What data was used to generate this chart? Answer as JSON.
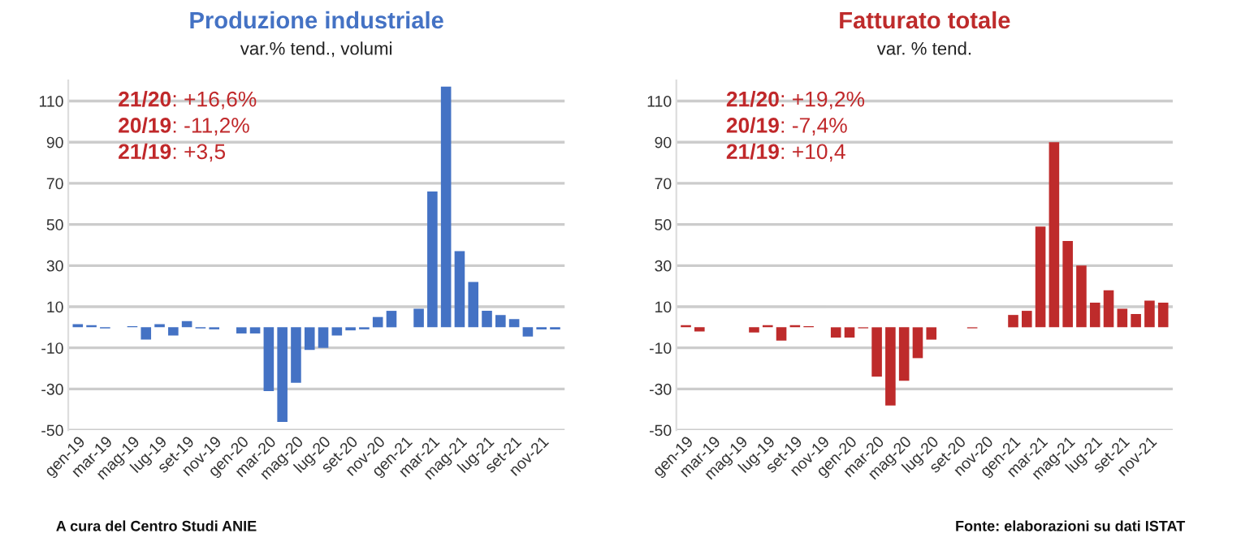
{
  "chart_data": [
    {
      "type": "bar",
      "title": "Produzione industriale",
      "subtitle": "var.% tend., volumi",
      "categories": [
        "gen-19",
        null,
        "mar-19",
        null,
        "mag-19",
        null,
        "lug-19",
        null,
        "set-19",
        null,
        "nov-19",
        null,
        "gen-20",
        null,
        "mar-20",
        null,
        "mag-20",
        null,
        "lug-20",
        null,
        "set-20",
        null,
        "nov-20",
        null,
        "gen-21",
        null,
        "mar-21",
        null,
        "mag-21",
        null,
        "lug-21",
        null,
        "set-21",
        null,
        "nov-21",
        null
      ],
      "series": [
        {
          "color": "#4472c4",
          "values": [
            1.5,
            1,
            -0.5,
            null,
            0.5,
            -6,
            1.5,
            -4,
            3,
            -0.5,
            -1,
            null,
            -3,
            -3,
            -31,
            -46,
            -27,
            -11,
            -10,
            -4,
            -1.5,
            -1,
            5,
            8,
            null,
            9,
            66,
            117,
            37,
            22,
            8,
            6,
            4,
            -4.5,
            -1,
            -1
          ]
        }
      ],
      "ylim": [
        -50,
        120
      ],
      "yticks": [
        -50,
        -30,
        -10,
        10,
        30,
        50,
        70,
        90,
        110
      ],
      "grid": "y",
      "annotations": [
        "21/20: +16,6%",
        "20/19: -11,2%",
        "21/19: +3,5",
        "A cura del Centro Studi ANIE"
      ]
    },
    {
      "type": "bar",
      "title": "Fatturato totale",
      "subtitle": "var. % tend.",
      "categories": [
        "gen-19",
        null,
        "mar-19",
        null,
        "mag-19",
        null,
        "lug-19",
        null,
        "set-19",
        null,
        "nov-19",
        null,
        "gen-20",
        null,
        "mar-20",
        null,
        "mag-20",
        null,
        "lug-20",
        null,
        "set-20",
        null,
        "nov-20",
        null,
        "gen-21",
        null,
        "mar-21",
        null,
        "mag-21",
        null,
        "lug-21",
        null,
        "set-21",
        null,
        "nov-21",
        null
      ],
      "series": [
        {
          "color": "#be2b2b",
          "values": [
            1,
            -2,
            null,
            null,
            null,
            -2.5,
            1,
            -6.5,
            1,
            0.5,
            null,
            -5,
            -5,
            -0.5,
            -24,
            -38,
            -26,
            -15,
            -6,
            null,
            null,
            -0.5,
            null,
            null,
            6,
            8,
            49,
            90,
            42,
            30,
            12,
            18,
            9,
            6.5,
            13,
            12
          ]
        }
      ],
      "ylim": [
        -50,
        120
      ],
      "yticks": [
        -50,
        -30,
        -10,
        10,
        30,
        50,
        70,
        90,
        110
      ],
      "grid": "y",
      "annotations": [
        "21/20: +19,2%",
        "20/19: -7,4%",
        "21/19: +10,4",
        "Fonte: elaborazioni su dati ISTAT"
      ]
    }
  ]
}
